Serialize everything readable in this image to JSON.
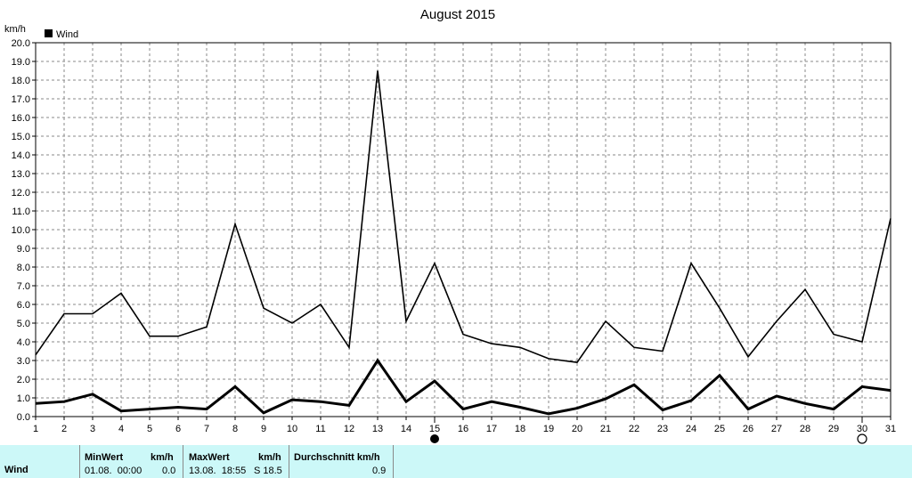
{
  "chart_data": {
    "type": "line",
    "title": "August 2015",
    "ylabel": "km/h",
    "xlabel": "",
    "legend": {
      "label": "Wind",
      "position": "top-left"
    },
    "ylim": [
      0,
      20
    ],
    "xlim": [
      1,
      31
    ],
    "grid": true,
    "y_ticks": [
      "0.0",
      "1.0",
      "2.0",
      "3.0",
      "4.0",
      "5.0",
      "6.0",
      "7.0",
      "8.0",
      "9.0",
      "10.0",
      "11.0",
      "12.0",
      "13.0",
      "14.0",
      "15.0",
      "16.0",
      "17.0",
      "18.0",
      "19.0",
      "20.0"
    ],
    "x": [
      1,
      2,
      3,
      4,
      5,
      6,
      7,
      8,
      9,
      10,
      11,
      12,
      13,
      14,
      15,
      16,
      17,
      18,
      19,
      20,
      21,
      22,
      23,
      24,
      25,
      26,
      27,
      28,
      29,
      30,
      31
    ],
    "series": [
      {
        "name": "",
        "values": [
          3.3,
          5.5,
          5.5,
          6.6,
          4.3,
          4.3,
          4.8,
          10.3,
          5.8,
          5.0,
          6.0,
          3.7,
          18.5,
          5.1,
          8.2,
          4.4,
          3.9,
          3.7,
          3.1,
          2.9,
          5.1,
          3.7,
          3.5,
          8.2,
          5.8,
          3.2,
          5.1,
          6.8,
          4.4,
          4.0,
          10.6
        ],
        "color": "#000000",
        "stroke": "thin"
      },
      {
        "name": "",
        "values": [
          0.7,
          0.8,
          1.2,
          0.3,
          0.4,
          0.5,
          0.4,
          1.6,
          0.2,
          0.9,
          0.8,
          0.6,
          3.0,
          0.8,
          1.9,
          0.4,
          0.8,
          0.5,
          0.15,
          0.45,
          0.95,
          1.7,
          0.35,
          0.85,
          2.2,
          0.4,
          1.1,
          0.7,
          0.4,
          1.6,
          1.4
        ],
        "color": "#000000",
        "stroke": "thick"
      }
    ],
    "moon_markers": [
      {
        "day": 15,
        "phase": "new-moon"
      },
      {
        "day": 30,
        "phase": "full-moon"
      }
    ]
  },
  "table": {
    "row_label": "Wind",
    "headers": {
      "min": "MinWert",
      "unit1": "km/h",
      "max": "MaxWert",
      "unit2": "km/h",
      "avg": "Durchschnitt km/h"
    },
    "values": {
      "min_time": "01.08.  00:00",
      "min_val": "0.0",
      "max_time": "13.08.  18:55",
      "max_val": "S 18.5",
      "avg_val": "0.9"
    }
  }
}
